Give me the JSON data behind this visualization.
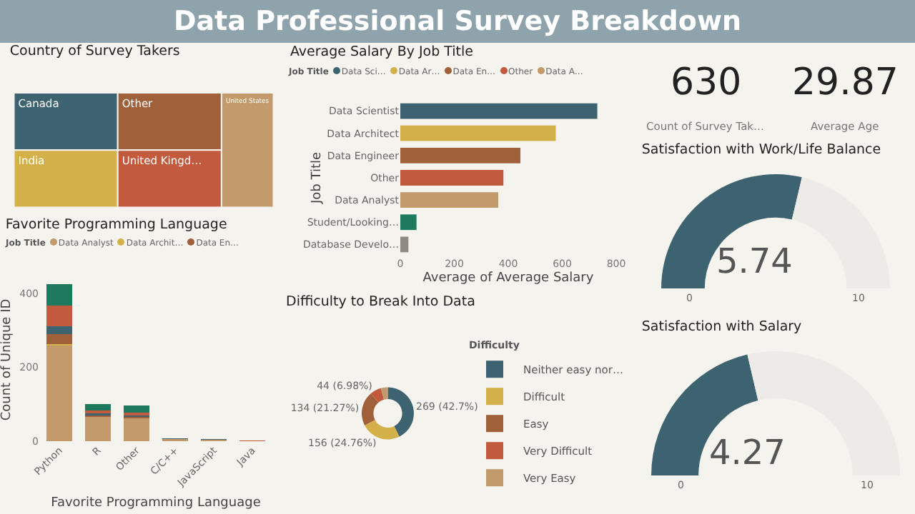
{
  "chart_data": [
    {
      "type": "other",
      "title": "Data Professional Survey Breakdown"
    },
    {
      "type": "other",
      "title": "Country of Survey Takers",
      "categories": [
        "Canada",
        "India",
        "Other",
        "United Kingd…",
        "United States"
      ],
      "colors": [
        "#3e6370",
        "#d4b04a",
        "#a0613a",
        "#c25a3e",
        "#c39a6b"
      ]
    },
    {
      "type": "bar",
      "orientation": "horizontal",
      "title": "Average Salary By Job Title",
      "xlabel": "Average of Average Salary",
      "ylabel": "Job Title",
      "legend_title": "Job Title",
      "legend": "top left",
      "categories": [
        "Data Scientist",
        "Data Architect",
        "Data Engineer",
        "Other",
        "Data Analyst",
        "Student/Looking…",
        "Database Develo…"
      ],
      "xlim": [
        0,
        800
      ],
      "xticks": [
        0,
        200,
        400,
        600,
        800
      ],
      "series": [
        {
          "name": "Data Sci…",
          "color": "#3e6370",
          "values": [
            730,
            null,
            null,
            null,
            null,
            null,
            null
          ]
        },
        {
          "name": "Data Ar…",
          "color": "#d4b04a",
          "values": [
            null,
            576,
            null,
            null,
            null,
            null,
            null
          ]
        },
        {
          "name": "Data En…",
          "color": "#a0613a",
          "values": [
            null,
            null,
            445,
            null,
            null,
            null,
            null
          ]
        },
        {
          "name": "Other",
          "color": "#c25a3e",
          "values": [
            null,
            null,
            null,
            382,
            null,
            null,
            null
          ]
        },
        {
          "name": "Data A…",
          "color": "#c39a6b",
          "values": [
            null,
            null,
            null,
            null,
            363,
            null,
            null
          ]
        },
        {
          "color": "#1e7a5e",
          "values": [
            null,
            null,
            null,
            null,
            null,
            60,
            null
          ]
        },
        {
          "color": "#8e8a82",
          "values": [
            null,
            null,
            null,
            null,
            null,
            null,
            30
          ]
        }
      ]
    },
    {
      "type": "other",
      "annotations": [
        "630",
        "Count of Survey Tak…",
        "29.87",
        "Average Age"
      ]
    },
    {
      "type": "donut",
      "title": "Satisfaction with Work/Life Balance",
      "categories": [
        null,
        null
      ],
      "values": [
        5.74,
        4.26
      ],
      "value_labels": [
        "5.74",
        null
      ],
      "annotations": [
        "0",
        "10"
      ],
      "colors": [
        "#3e6370",
        "#ecebe8"
      ]
    },
    {
      "type": "bar",
      "stacked": true,
      "title": "Favorite Programming Language",
      "xlabel": "Favorite Programming Language",
      "ylabel": "Count of Unique ID",
      "legend_title": "Job Title",
      "legend": "top left",
      "categories": [
        "Python",
        "R",
        "Other",
        "C/C++",
        "JavaScript",
        "Java"
      ],
      "ylim": [
        0,
        440
      ],
      "yticks": [
        0,
        200,
        400
      ],
      "series": [
        {
          "name": "Data Analyst",
          "color": "#c39a6b",
          "values": [
            259,
            65,
            62,
            5,
            3,
            0
          ]
        },
        {
          "name": "Data Archit…",
          "color": "#d4b04a",
          "values": [
            4,
            0,
            0,
            0,
            0,
            0
          ]
        },
        {
          "name": "Data En…",
          "color": "#a0613a",
          "values": [
            26,
            5,
            4,
            0,
            0,
            0
          ]
        },
        {
          "color": "#3e6370",
          "values": [
            22,
            5,
            4,
            2,
            3,
            0
          ]
        },
        {
          "color": "#8e8a82",
          "values": [
            0,
            0,
            0,
            0,
            0,
            0
          ]
        },
        {
          "color": "#c25a3e",
          "values": [
            55,
            8,
            8,
            0,
            0,
            2
          ]
        },
        {
          "color": "#1e7a5e",
          "values": [
            58,
            18,
            18,
            0,
            0,
            0
          ]
        }
      ]
    },
    {
      "type": "donut",
      "title": "Difficulty to Break Into Data",
      "legend_title": "Difficulty",
      "legend": "right",
      "categories": [
        "Neither easy nor…",
        "Difficult",
        "Easy",
        "Very Difficult",
        "Very Easy"
      ],
      "values": [
        269,
        156,
        134,
        44,
        27
      ],
      "value_labels": [
        "269 (42.7%)",
        "156 (24.76%)",
        "134 (21.27%)",
        "44 (6.98%)",
        null
      ],
      "colors": [
        "#3e6370",
        "#d4b04a",
        "#a0613a",
        "#c25a3e",
        "#c39a6b"
      ]
    },
    {
      "type": "donut",
      "title": "Satisfaction with Salary",
      "categories": [
        null,
        null
      ],
      "values": [
        4.27,
        5.73
      ],
      "value_labels": [
        "4.27",
        null
      ],
      "annotations": [
        "0",
        "10"
      ],
      "colors": [
        "#3e6370",
        "#ecebe8"
      ]
    }
  ]
}
